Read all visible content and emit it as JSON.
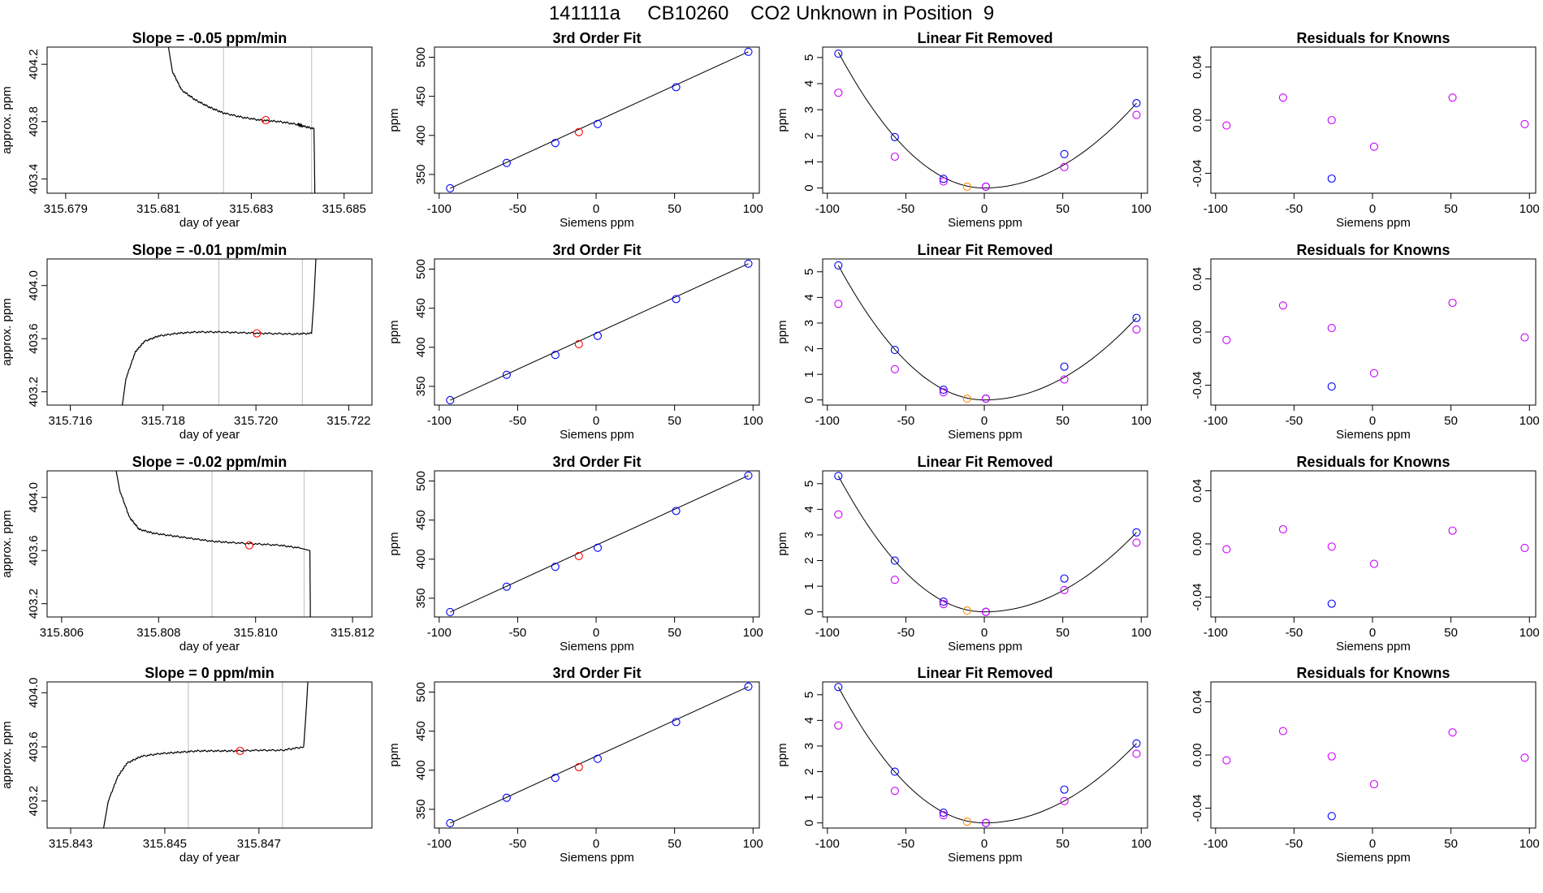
{
  "page_title": "141111a     CB10260    CO2 Unknown in Position  9",
  "colors": {
    "known_point": "#0000ff",
    "unknown_point": "#ff0000",
    "residual_point": "#cc00ff",
    "unknown_removed": "#ff8c00",
    "line": "#000000",
    "vline": "#bebebe"
  },
  "chart_data": [
    {
      "type": "line",
      "title": "Slope =  -0.05  ppm/min",
      "xlabel": "day of year",
      "ylabel": "approx. ppm",
      "xlim": [
        315.6786,
        315.6856
      ],
      "ylim": [
        403.3,
        404.32
      ],
      "xticks": [
        315.679,
        315.681,
        315.683,
        315.685
      ],
      "xtick_labels": [
        "315.679",
        "315.681",
        "315.683",
        "315.685"
      ],
      "yticks": [
        403.4,
        403.8,
        404.2
      ],
      "ytick_labels": [
        "403.4",
        "403.8",
        "404.2"
      ],
      "vlines": [
        315.6824,
        315.6843
      ],
      "x": [
        315.6812,
        315.6813,
        315.6815,
        315.6818,
        315.6821,
        315.6824,
        315.6828,
        315.6832,
        315.6836,
        315.684,
        315.6841,
        315.68435,
        315.68436,
        315.68437
      ],
      "y": [
        404.35,
        404.15,
        404.02,
        403.95,
        403.9,
        403.86,
        403.83,
        403.81,
        403.8,
        403.78,
        403.77,
        403.75,
        403.55,
        403.28
      ],
      "unknown_point": {
        "x": 315.68331,
        "y": 403.81
      }
    },
    {
      "type": "scatter",
      "title": "3rd Order Fit",
      "xlabel": "Siemens ppm",
      "ylabel": "ppm",
      "xlim": [
        -103,
        104
      ],
      "ylim": [
        326,
        513
      ],
      "xticks": [
        -100,
        -50,
        0,
        50,
        100
      ],
      "xtick_labels": [
        "-100",
        "-50",
        "0",
        "50",
        "100"
      ],
      "yticks": [
        350,
        400,
        450,
        500
      ],
      "ytick_labels": [
        "350",
        "400",
        "450",
        "500"
      ],
      "fit": {
        "x": [
          -93,
          97
        ],
        "y": [
          332.3,
          507
        ]
      },
      "knowns": {
        "x": [
          -93,
          -57,
          -26,
          1,
          51,
          97
        ],
        "y": [
          332.3,
          364.8,
          390.2,
          414.6,
          461.7,
          507.0
        ]
      },
      "unknown": {
        "x": -11,
        "y": 404.2
      }
    },
    {
      "type": "scatter",
      "title": "Linear Fit Removed",
      "xlabel": "Siemens ppm",
      "ylabel": "ppm",
      "xlim": [
        -103,
        104
      ],
      "ylim": [
        -0.2,
        5.4
      ],
      "xticks": [
        -100,
        -50,
        0,
        50,
        100
      ],
      "xtick_labels": [
        "-100",
        "-50",
        "0",
        "50",
        "100"
      ],
      "yticks": [
        0,
        1,
        2,
        3,
        4,
        5
      ],
      "ytick_labels": [
        "0",
        "1",
        "2",
        "3",
        "4",
        "5"
      ],
      "curve": [
        -93,
        5.2,
        0.0,
        3.25,
        97
      ],
      "knowns": {
        "x": [
          -93,
          -57,
          -26,
          1,
          51,
          97
        ],
        "y": [
          5.15,
          1.95,
          0.35,
          0.05,
          1.3,
          3.25
        ]
      },
      "removed": {
        "x": [
          -93,
          -57,
          -26,
          1,
          51,
          97
        ],
        "y": [
          3.65,
          1.2,
          0.25,
          0.05,
          0.8,
          2.8
        ]
      },
      "unknown": {
        "x": -11,
        "y": 0.05
      }
    },
    {
      "type": "scatter",
      "title": "Residuals for Knowns",
      "xlabel": "Siemens ppm",
      "ylabel": "",
      "xlim": [
        -103,
        104
      ],
      "ylim": [
        -0.055,
        0.055
      ],
      "xticks": [
        -100,
        -50,
        0,
        50,
        100
      ],
      "xtick_labels": [
        "-100",
        "-50",
        "0",
        "50",
        "100"
      ],
      "yticks": [
        -0.04,
        0.0,
        0.04
      ],
      "ytick_labels": [
        "-0.04",
        "0.00",
        "0.04"
      ],
      "residuals": {
        "x": [
          -93,
          -57,
          -26,
          1,
          51,
          97
        ],
        "y": [
          -0.004,
          0.017,
          0.0,
          -0.02,
          0.017,
          -0.003
        ]
      },
      "low_point": {
        "x": -26,
        "y": -0.044
      }
    },
    {
      "type": "line",
      "title": "Slope =  -0.01  ppm/min",
      "xlabel": "day of year",
      "ylabel": "approx. ppm",
      "xlim": [
        315.7155,
        315.7225
      ],
      "ylim": [
        403.1,
        404.2
      ],
      "xticks": [
        315.716,
        315.718,
        315.72,
        315.722
      ],
      "xtick_labels": [
        "315.716",
        "315.718",
        "315.720",
        "315.722"
      ],
      "yticks": [
        403.2,
        403.6,
        404.0
      ],
      "ytick_labels": [
        "403.2",
        "403.6",
        "404.0"
      ],
      "vlines": [
        315.7192,
        315.721
      ],
      "x": [
        315.7171,
        315.7172,
        315.7174,
        315.7176,
        315.7179,
        315.7183,
        315.7187,
        315.7192,
        315.7197,
        315.7202,
        315.7208,
        315.7212,
        315.72125,
        315.7213
      ],
      "y": [
        403.05,
        403.3,
        403.5,
        403.58,
        403.62,
        403.64,
        403.65,
        403.65,
        403.645,
        403.64,
        403.635,
        403.64,
        403.9,
        404.25
      ],
      "unknown_point": {
        "x": 315.72002,
        "y": 403.64
      }
    },
    {
      "type": "scatter",
      "title": "3rd Order Fit",
      "xlabel": "Siemens ppm",
      "ylabel": "ppm",
      "xlim": [
        -103,
        104
      ],
      "ylim": [
        326,
        513
      ],
      "xticks": [
        -100,
        -50,
        0,
        50,
        100
      ],
      "xtick_labels": [
        "-100",
        "-50",
        "0",
        "50",
        "100"
      ],
      "yticks": [
        350,
        400,
        450,
        500
      ],
      "ytick_labels": [
        "350",
        "400",
        "450",
        "500"
      ],
      "fit": {
        "x": [
          -93,
          97
        ],
        "y": [
          332.3,
          507
        ]
      },
      "knowns": {
        "x": [
          -93,
          -57,
          -26,
          1,
          51,
          97
        ],
        "y": [
          332.3,
          364.8,
          390.2,
          414.6,
          461.7,
          507.0
        ]
      },
      "unknown": {
        "x": -11,
        "y": 404.0
      }
    },
    {
      "type": "scatter",
      "title": "Linear Fit Removed",
      "xlabel": "Siemens ppm",
      "ylabel": "ppm",
      "xlim": [
        -103,
        104
      ],
      "ylim": [
        -0.2,
        5.5
      ],
      "xticks": [
        -100,
        -50,
        0,
        50,
        100
      ],
      "xtick_labels": [
        "-100",
        "-50",
        "0",
        "50",
        "100"
      ],
      "yticks": [
        0,
        1,
        2,
        3,
        4,
        5
      ],
      "ytick_labels": [
        "0",
        "1",
        "2",
        "3",
        "4",
        "5"
      ],
      "curve": [
        -93,
        5.25,
        0.0,
        3.2,
        97
      ],
      "knowns": {
        "x": [
          -93,
          -57,
          -26,
          1,
          51,
          97
        ],
        "y": [
          5.25,
          1.95,
          0.4,
          0.05,
          1.3,
          3.2
        ]
      },
      "removed": {
        "x": [
          -93,
          -57,
          -26,
          1,
          51,
          97
        ],
        "y": [
          3.75,
          1.2,
          0.3,
          0.05,
          0.8,
          2.75
        ]
      },
      "unknown": {
        "x": -11,
        "y": 0.05
      }
    },
    {
      "type": "scatter",
      "title": "Residuals for Knowns",
      "xlabel": "Siemens ppm",
      "ylabel": "",
      "xlim": [
        -103,
        104
      ],
      "ylim": [
        -0.055,
        0.055
      ],
      "xticks": [
        -100,
        -50,
        0,
        50,
        100
      ],
      "xtick_labels": [
        "-100",
        "-50",
        "0",
        "50",
        "100"
      ],
      "yticks": [
        -0.04,
        0.0,
        0.04
      ],
      "ytick_labels": [
        "-0.04",
        "0.00",
        "0.04"
      ],
      "residuals": {
        "x": [
          -93,
          -57,
          -26,
          1,
          51,
          97
        ],
        "y": [
          -0.006,
          0.02,
          0.003,
          -0.031,
          0.022,
          -0.004
        ]
      },
      "low_point": {
        "x": -26,
        "y": -0.041
      }
    },
    {
      "type": "line",
      "title": "Slope =  -0.02  ppm/min",
      "xlabel": "day of year",
      "ylabel": "approx. ppm",
      "xlim": [
        315.8057,
        315.8124
      ],
      "ylim": [
        403.1,
        404.2
      ],
      "xticks": [
        315.806,
        315.808,
        315.81,
        315.812
      ],
      "xtick_labels": [
        "315.806",
        "315.808",
        "315.810",
        "315.812"
      ],
      "yticks": [
        403.2,
        403.6,
        404.0
      ],
      "ytick_labels": [
        "403.2",
        "403.6",
        "404.0"
      ],
      "vlines": [
        315.8091,
        315.811
      ],
      "x": [
        315.8071,
        315.8072,
        315.8074,
        315.8076,
        315.8079,
        315.8083,
        315.8087,
        315.8091,
        315.8095,
        315.81,
        315.8105,
        315.8109,
        315.81112,
        315.81113
      ],
      "y": [
        404.25,
        404.05,
        403.85,
        403.76,
        403.73,
        403.71,
        403.69,
        403.67,
        403.66,
        403.65,
        403.64,
        403.62,
        403.6,
        403.1
      ],
      "unknown_point": {
        "x": 315.80987,
        "y": 403.64
      }
    },
    {
      "type": "scatter",
      "title": "3rd Order Fit",
      "xlabel": "Siemens ppm",
      "ylabel": "ppm",
      "xlim": [
        -103,
        104
      ],
      "ylim": [
        326,
        513
      ],
      "xticks": [
        -100,
        -50,
        0,
        50,
        100
      ],
      "xtick_labels": [
        "-100",
        "-50",
        "0",
        "50",
        "100"
      ],
      "yticks": [
        350,
        400,
        450,
        500
      ],
      "ytick_labels": [
        "350",
        "400",
        "450",
        "500"
      ],
      "fit": {
        "x": [
          -93,
          97
        ],
        "y": [
          332.3,
          507
        ]
      },
      "knowns": {
        "x": [
          -93,
          -57,
          -26,
          1,
          51,
          97
        ],
        "y": [
          332.3,
          364.8,
          390.2,
          414.6,
          461.7,
          507.0
        ]
      },
      "unknown": {
        "x": -11,
        "y": 404.0
      }
    },
    {
      "type": "scatter",
      "title": "Linear Fit Removed",
      "xlabel": "Siemens ppm",
      "ylabel": "ppm",
      "xlim": [
        -103,
        104
      ],
      "ylim": [
        -0.2,
        5.5
      ],
      "xticks": [
        -100,
        -50,
        0,
        50,
        100
      ],
      "xtick_labels": [
        "-100",
        "-50",
        "0",
        "50",
        "100"
      ],
      "yticks": [
        0,
        1,
        2,
        3,
        4,
        5
      ],
      "ytick_labels": [
        "0",
        "1",
        "2",
        "3",
        "4",
        "5"
      ],
      "curve": [
        -93,
        5.3,
        0.0,
        3.1,
        97
      ],
      "knowns": {
        "x": [
          -93,
          -57,
          -26,
          1,
          51,
          97
        ],
        "y": [
          5.3,
          2.0,
          0.4,
          0.0,
          1.3,
          3.1
        ]
      },
      "removed": {
        "x": [
          -93,
          -57,
          -26,
          1,
          51,
          97
        ],
        "y": [
          3.8,
          1.25,
          0.3,
          0.0,
          0.85,
          2.7
        ]
      },
      "unknown": {
        "x": -11,
        "y": 0.05
      }
    },
    {
      "type": "scatter",
      "title": "Residuals for Knowns",
      "xlabel": "Siemens ppm",
      "ylabel": "",
      "xlim": [
        -103,
        104
      ],
      "ylim": [
        -0.055,
        0.055
      ],
      "xticks": [
        -100,
        -50,
        0,
        50,
        100
      ],
      "xtick_labels": [
        "-100",
        "-50",
        "0",
        "50",
        "100"
      ],
      "yticks": [
        -0.04,
        0.0,
        0.04
      ],
      "ytick_labels": [
        "-0.04",
        "0.00",
        "0.04"
      ],
      "residuals": {
        "x": [
          -93,
          -57,
          -26,
          1,
          51,
          97
        ],
        "y": [
          -0.004,
          0.011,
          -0.002,
          -0.015,
          0.01,
          -0.003
        ]
      },
      "low_point": {
        "x": -26,
        "y": -0.045
      }
    },
    {
      "type": "line",
      "title": "Slope =  0  ppm/min",
      "xlabel": "day of year",
      "ylabel": "approx. ppm",
      "xlim": [
        315.8425,
        315.8494
      ],
      "ylim": [
        403.0,
        404.08
      ],
      "xticks": [
        315.843,
        315.845,
        315.847
      ],
      "xtick_labels": [
        "315.843",
        "315.845",
        "315.847"
      ],
      "yticks": [
        403.2,
        403.6,
        404.0
      ],
      "ytick_labels": [
        "403.2",
        "403.6",
        "404.0"
      ],
      "vlines": [
        315.8455,
        315.8475
      ],
      "x": [
        315.8437,
        315.8438,
        315.844,
        315.8442,
        315.8445,
        315.8449,
        315.8453,
        315.8457,
        315.8461,
        315.8465,
        315.847,
        315.8475,
        315.84795,
        315.848,
        315.84805
      ],
      "y": [
        403.0,
        403.2,
        403.38,
        403.48,
        403.53,
        403.55,
        403.56,
        403.57,
        403.57,
        403.57,
        403.575,
        403.575,
        403.6,
        403.85,
        404.15
      ],
      "unknown_point": {
        "x": 315.8466,
        "y": 403.57
      }
    },
    {
      "type": "scatter",
      "title": "3rd Order Fit",
      "xlabel": "Siemens ppm",
      "ylabel": "ppm",
      "xlim": [
        -103,
        104
      ],
      "ylim": [
        326,
        513
      ],
      "xticks": [
        -100,
        -50,
        0,
        50,
        100
      ],
      "xtick_labels": [
        "-100",
        "-50",
        "0",
        "50",
        "100"
      ],
      "yticks": [
        350,
        400,
        450,
        500
      ],
      "ytick_labels": [
        "350",
        "400",
        "450",
        "500"
      ],
      "fit": {
        "x": [
          -93,
          97
        ],
        "y": [
          332.3,
          507
        ]
      },
      "knowns": {
        "x": [
          -93,
          -57,
          -26,
          1,
          51,
          97
        ],
        "y": [
          332.3,
          364.8,
          390.2,
          414.6,
          461.7,
          507.0
        ]
      },
      "unknown": {
        "x": -11,
        "y": 403.9
      }
    },
    {
      "type": "scatter",
      "title": "Linear Fit Removed",
      "xlabel": "Siemens ppm",
      "ylabel": "ppm",
      "xlim": [
        -103,
        104
      ],
      "ylim": [
        -0.2,
        5.5
      ],
      "xticks": [
        -100,
        -50,
        0,
        50,
        100
      ],
      "xtick_labels": [
        "-100",
        "-50",
        "0",
        "50",
        "100"
      ],
      "yticks": [
        0,
        1,
        2,
        3,
        4,
        5
      ],
      "ytick_labels": [
        "0",
        "1",
        "2",
        "3",
        "4",
        "5"
      ],
      "curve": [
        -93,
        5.3,
        0.0,
        3.1,
        97
      ],
      "knowns": {
        "x": [
          -93,
          -57,
          -26,
          1,
          51,
          97
        ],
        "y": [
          5.3,
          2.0,
          0.4,
          0.0,
          1.3,
          3.1
        ]
      },
      "removed": {
        "x": [
          -93,
          -57,
          -26,
          1,
          51,
          97
        ],
        "y": [
          3.8,
          1.25,
          0.3,
          0.0,
          0.85,
          2.7
        ]
      },
      "unknown": {
        "x": -11,
        "y": 0.05
      }
    },
    {
      "type": "scatter",
      "title": "Residuals for Knowns",
      "xlabel": "Siemens ppm",
      "ylabel": "",
      "xlim": [
        -103,
        104
      ],
      "ylim": [
        -0.055,
        0.055
      ],
      "xticks": [
        -100,
        -50,
        0,
        50,
        100
      ],
      "xtick_labels": [
        "-100",
        "-50",
        "0",
        "50",
        "100"
      ],
      "yticks": [
        -0.04,
        0.0,
        0.04
      ],
      "ytick_labels": [
        "-0.04",
        "0.00",
        "0.04"
      ],
      "residuals": {
        "x": [
          -93,
          -57,
          -26,
          1,
          51,
          97
        ],
        "y": [
          -0.004,
          0.018,
          -0.001,
          -0.022,
          0.017,
          -0.002
        ]
      },
      "low_point": {
        "x": -26,
        "y": -0.046
      }
    }
  ]
}
